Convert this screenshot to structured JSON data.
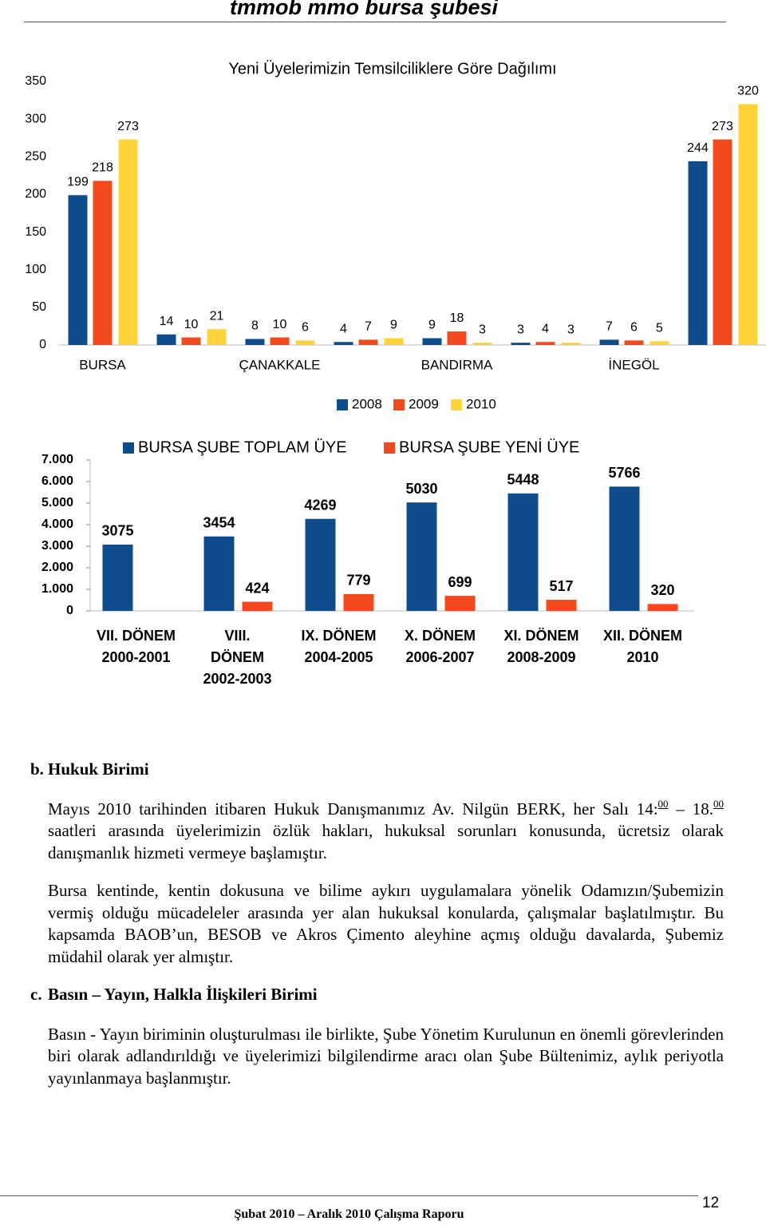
{
  "header": {
    "title": "tmmob mmo bursa şubesi"
  },
  "chart_data": [
    {
      "type": "bar",
      "title": "Yeni Üyelerimizin Temsilciliklere Göre Dağılımı",
      "categories": [
        "BURSA",
        null,
        "ÇANAKKALE",
        null,
        "BANDIRMA",
        null,
        "İNEGÖL",
        null
      ],
      "series": [
        {
          "name": "2008",
          "color": "#0f4c8c",
          "values": [
            199,
            14,
            8,
            4,
            9,
            3,
            7,
            244
          ]
        },
        {
          "name": "2009",
          "color": "#f24a1c",
          "values": [
            218,
            10,
            10,
            7,
            18,
            4,
            6,
            273
          ]
        },
        {
          "name": "2010",
          "color": "#ffd43a",
          "values": [
            273,
            21,
            6,
            9,
            3,
            3,
            5,
            320
          ]
        }
      ],
      "ylim": [
        0,
        350
      ],
      "yticks": [
        0,
        50,
        100,
        150,
        200,
        250,
        300,
        350
      ],
      "legend": "bottom",
      "grid": false
    },
    {
      "type": "bar",
      "categories": [
        [
          "VII. DÖNEM",
          "2000-2001"
        ],
        [
          "VIII.",
          "DÖNEM",
          "2002-2003"
        ],
        [
          "IX. DÖNEM",
          "2004-2005"
        ],
        [
          "X. DÖNEM",
          "2006-2007"
        ],
        [
          "XI. DÖNEM",
          "2008-2009"
        ],
        [
          "XII. DÖNEM",
          "2010"
        ]
      ],
      "series": [
        {
          "name": "BURSA ŞUBE TOPLAM ÜYE",
          "color": "#0f4c8c",
          "values": [
            3075,
            3454,
            4269,
            5030,
            5448,
            5766
          ]
        },
        {
          "name": "BURSA ŞUBE YENİ ÜYE",
          "color": "#f24a1c",
          "values": [
            null,
            424,
            779,
            699,
            517,
            320
          ]
        }
      ],
      "ylim": [
        0,
        7000
      ],
      "yticks": [
        0,
        {
          "value": 1000,
          "label": "1.000"
        },
        {
          "value": 2000,
          "label": "2.000"
        },
        {
          "value": 3000,
          "label": "3.000"
        },
        {
          "value": 4000,
          "label": "4.000"
        },
        {
          "value": 5000,
          "label": "5.000"
        },
        {
          "value": 6000,
          "label": "6.000"
        },
        {
          "value": 7000,
          "label": "7.000"
        }
      ],
      "legend": "top",
      "grid": false
    }
  ],
  "sections": [
    {
      "letter": "b.",
      "title": "Hukuk Birimi",
      "paragraphs": [
        [
          "Mayıs 2010 tarihinden itibaren Hukuk Danışmanımız Av. Nilgün BERK, her Salı 14:",
          {
            "sup": "00"
          },
          " – 18.",
          {
            "sup": "00"
          },
          " saatleri arasında üyelerimizin özlük hakları, hukuksal sorunları konusunda, ücretsiz olarak danışmanlık hizmeti vermeye başlamıştır."
        ],
        [
          "Bursa kentinde, kentin dokusuna ve bilime aykırı uygulamalara yönelik Odamızın/Şubemizin vermiş olduğu mücadeleler arasında yer alan hukuksal konularda, çalışmalar başlatılmıştır. Bu kapsamda BAOB’un, BESOB ve Akros Çimento aleyhine açmış olduğu davalarda, Şubemiz müdahil olarak yer almıştır."
        ]
      ]
    },
    {
      "letter": "c.",
      "title": "Basın – Yayın, Halkla İlişkileri Birimi",
      "paragraphs": [
        [
          "Basın - Yayın biriminin oluşturulması ile birlikte, Şube Yönetim Kurulunun en önemli görevlerinden biri olarak adlandırıldığı ve üyelerimizi bilgilendirme aracı olan Şube Bültenimiz, aylık periyotla yayınlanmaya başlanmıştır."
        ]
      ]
    }
  ],
  "footer": {
    "text": "Şubat 2010 – Aralık 2010 Çalışma Raporu",
    "page": "12"
  }
}
